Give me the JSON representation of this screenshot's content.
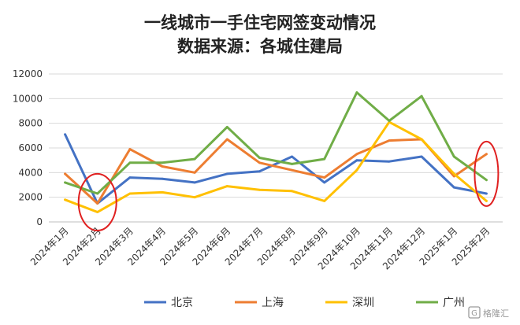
{
  "chart_data": {
    "type": "line",
    "title": "一线城市一手住宅网签变动情况",
    "subtitle": "数据来源：各城住建局",
    "categories": [
      "2024年1月",
      "2024年2月",
      "2024年3月",
      "2024年4月",
      "2024年5月",
      "2024年6月",
      "2024年7月",
      "2024年8月",
      "2024年9月",
      "2024年10月",
      "2024年11月",
      "2024年12月",
      "2025年1月",
      "2025年2月"
    ],
    "ylim": [
      0,
      12000
    ],
    "yticks": [
      "0",
      "2000",
      "4000",
      "6000",
      "8000",
      "10000",
      "12000"
    ],
    "grid": true,
    "legend_position": "bottom",
    "series": [
      {
        "name": "北京",
        "color": "#4472C4",
        "values": [
          7100,
          1500,
          3600,
          3500,
          3200,
          3900,
          4100,
          5300,
          3200,
          5000,
          4900,
          5300,
          2800,
          2300
        ]
      },
      {
        "name": "上海",
        "color": "#ED7D31",
        "values": [
          3900,
          1500,
          5900,
          4500,
          4000,
          6700,
          4800,
          4200,
          3600,
          5500,
          6600,
          6700,
          3700,
          5500
        ]
      },
      {
        "name": "深圳",
        "color": "#FFC000",
        "values": [
          1800,
          800,
          2300,
          2400,
          2000,
          2900,
          2600,
          2500,
          1700,
          4200,
          8100,
          6700,
          3900,
          1700
        ]
      },
      {
        "name": "广州",
        "color": "#70AD47",
        "values": [
          3200,
          2300,
          4800,
          4800,
          5100,
          7700,
          5200,
          4700,
          5100,
          10500,
          8200,
          10200,
          5300,
          3400
        ]
      }
    ],
    "annotations": [
      {
        "type": "ellipse",
        "color": "#E02020",
        "category": "2024年2月"
      },
      {
        "type": "ellipse",
        "color": "#E02020",
        "category": "2025年2月"
      }
    ]
  },
  "watermark": {
    "text": "格隆汇",
    "icon": "g-logo-icon"
  }
}
